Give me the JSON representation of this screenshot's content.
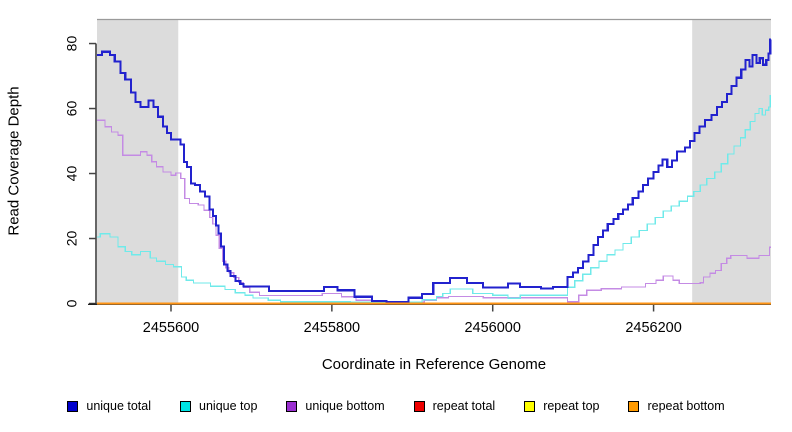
{
  "figure": {
    "background": "#FFFFFF"
  },
  "y_axis": {
    "title": "Read Coverage Depth",
    "ticks": [
      0,
      20,
      40,
      60,
      80
    ]
  },
  "x_axis": {
    "title": "Coordinate in Reference Genome",
    "ticks": [
      2455600,
      2455800,
      2456000,
      2456200
    ]
  },
  "legend": {
    "items": [
      {
        "name": "unique-total",
        "label": "unique total",
        "color": "#0000CC"
      },
      {
        "name": "unique-top",
        "label": "unique top",
        "color": "#00E5E5"
      },
      {
        "name": "unique-bottom",
        "label": "unique bottom",
        "color": "#9A2FD0"
      },
      {
        "name": "repeat-total",
        "label": "repeat total",
        "color": "#EE0000"
      },
      {
        "name": "repeat-top",
        "label": "repeat top",
        "color": "#FFFF00"
      },
      {
        "name": "repeat-bottom",
        "label": "repeat bottom",
        "color": "#FF9A00"
      }
    ]
  },
  "chart_data": {
    "type": "line",
    "step": true,
    "title": "",
    "xlabel": "Coordinate in Reference Genome",
    "ylabel": "Read Coverage Depth",
    "xlim": [
      2455508,
      2456346
    ],
    "ylim": [
      0,
      87.4
    ],
    "grid": false,
    "axis_color": "#000000",
    "tick_color": "#444444",
    "top_border_color": "#9A9A9A",
    "shade_color": "#DCDCDC",
    "shaded_regions": [
      [
        2455508,
        2455609
      ],
      [
        2456248,
        2456346
      ]
    ],
    "series": [
      {
        "name": "unique-bottom",
        "label": "unique bottom",
        "color": "#C48BE4",
        "width": 1.3,
        "points": [
          [
            2455508,
            56.4
          ],
          [
            2455518,
            54.4
          ],
          [
            2455526,
            52.8
          ],
          [
            2455534,
            51.8
          ],
          [
            2455540,
            45.6
          ],
          [
            2455562,
            46.7
          ],
          [
            2455570,
            45.6
          ],
          [
            2455576,
            43.6
          ],
          [
            2455582,
            42.1
          ],
          [
            2455590,
            40.5
          ],
          [
            2455600,
            39.5
          ],
          [
            2455606,
            40.2
          ],
          [
            2455612,
            38.5
          ],
          [
            2455617,
            32.3
          ],
          [
            2455623,
            30.8
          ],
          [
            2455634,
            30.3
          ],
          [
            2455641,
            28.7
          ],
          [
            2455648,
            26.5
          ],
          [
            2455652,
            24.5
          ],
          [
            2455656,
            21
          ],
          [
            2455660,
            17
          ],
          [
            2455664,
            13
          ],
          [
            2455668,
            11
          ],
          [
            2455672,
            9.5
          ],
          [
            2455678,
            8
          ],
          [
            2455684,
            6.5
          ],
          [
            2455690,
            5
          ],
          [
            2455698,
            3.5
          ],
          [
            2455710,
            2.5
          ],
          [
            2455788,
            3.1
          ],
          [
            2455812,
            2.1
          ],
          [
            2455830,
            1.0
          ],
          [
            2455850,
            0.4
          ],
          [
            2455915,
            1.0
          ],
          [
            2455930,
            1.8
          ],
          [
            2455945,
            2.2
          ],
          [
            2455988,
            1.8
          ],
          [
            2456093,
            0.6
          ],
          [
            2456107,
            2.6
          ],
          [
            2456117,
            4.1
          ],
          [
            2456135,
            4.6
          ],
          [
            2456160,
            5.1
          ],
          [
            2456190,
            6.2
          ],
          [
            2456203,
            7.2
          ],
          [
            2456212,
            8.5
          ],
          [
            2456224,
            7.2
          ],
          [
            2456232,
            6.2
          ],
          [
            2456258,
            6.4
          ],
          [
            2456262,
            8.2
          ],
          [
            2456270,
            9.3
          ],
          [
            2456277,
            10.2
          ],
          [
            2456284,
            12.3
          ],
          [
            2456291,
            13.9
          ],
          [
            2456296,
            14.8
          ],
          [
            2456316,
            13.9
          ],
          [
            2456331,
            14.8
          ],
          [
            2456344,
            17.3
          ]
        ]
      },
      {
        "name": "unique-top",
        "label": "unique top",
        "color": "#6FEAEA",
        "width": 1.3,
        "points": [
          [
            2455508,
            20.5
          ],
          [
            2455512,
            21.5
          ],
          [
            2455524,
            20.5
          ],
          [
            2455534,
            17.5
          ],
          [
            2455543,
            16
          ],
          [
            2455551,
            15
          ],
          [
            2455562,
            16
          ],
          [
            2455574,
            14
          ],
          [
            2455582,
            13
          ],
          [
            2455593,
            12
          ],
          [
            2455603,
            11.3
          ],
          [
            2455613,
            8.2
          ],
          [
            2455619,
            7.2
          ],
          [
            2455628,
            6.3
          ],
          [
            2455649,
            5.3
          ],
          [
            2455667,
            4.3
          ],
          [
            2455680,
            3.3
          ],
          [
            2455692,
            2.6
          ],
          [
            2455702,
            1.7
          ],
          [
            2455721,
            1.0
          ],
          [
            2455736,
            0.6
          ],
          [
            2455823,
            0.4
          ],
          [
            2455912,
            1.2
          ],
          [
            2455930,
            2.2
          ],
          [
            2455938,
            3.1
          ],
          [
            2455947,
            4.5
          ],
          [
            2455975,
            3.1
          ],
          [
            2456000,
            2.6
          ],
          [
            2456019,
            1.6
          ],
          [
            2456034,
            2.6
          ],
          [
            2456093,
            5
          ],
          [
            2456102,
            7
          ],
          [
            2456112,
            9
          ],
          [
            2456122,
            11
          ],
          [
            2456132,
            13
          ],
          [
            2456142,
            15
          ],
          [
            2456152,
            16.5
          ],
          [
            2456162,
            18.5
          ],
          [
            2456172,
            20.5
          ],
          [
            2456182,
            22.5
          ],
          [
            2456192,
            24.5
          ],
          [
            2456202,
            26.5
          ],
          [
            2456212,
            28.5
          ],
          [
            2456222,
            30
          ],
          [
            2456232,
            31.5
          ],
          [
            2456242,
            33
          ],
          [
            2456250,
            34.5
          ],
          [
            2456258,
            36.5
          ],
          [
            2456266,
            38.5
          ],
          [
            2456276,
            40.5
          ],
          [
            2456284,
            43
          ],
          [
            2456292,
            46
          ],
          [
            2456300,
            48.5
          ],
          [
            2456308,
            51
          ],
          [
            2456314,
            53.5
          ],
          [
            2456320,
            56
          ],
          [
            2456326,
            58.5
          ],
          [
            2456331,
            60
          ],
          [
            2456335,
            58
          ],
          [
            2456339,
            59.5
          ],
          [
            2456343,
            60.5
          ],
          [
            2456345,
            64
          ]
        ]
      },
      {
        "name": "unique-total",
        "label": "unique total",
        "color": "#2222CE",
        "width": 2.1,
        "points": [
          [
            2455508,
            76.5
          ],
          [
            2455514,
            77.5
          ],
          [
            2455524,
            76.5
          ],
          [
            2455530,
            74.5
          ],
          [
            2455537,
            71
          ],
          [
            2455543,
            69
          ],
          [
            2455550,
            65
          ],
          [
            2455556,
            62
          ],
          [
            2455562,
            60.5
          ],
          [
            2455572,
            62.5
          ],
          [
            2455578,
            60.5
          ],
          [
            2455584,
            57.5
          ],
          [
            2455590,
            54.5
          ],
          [
            2455595,
            52.5
          ],
          [
            2455600,
            50.5
          ],
          [
            2455612,
            49
          ],
          [
            2455616,
            43.5
          ],
          [
            2455620,
            42
          ],
          [
            2455625,
            37
          ],
          [
            2455630,
            36.5
          ],
          [
            2455636,
            34.5
          ],
          [
            2455642,
            33
          ],
          [
            2455648,
            29
          ],
          [
            2455652,
            27
          ],
          [
            2455656,
            24
          ],
          [
            2455659,
            21.5
          ],
          [
            2455662,
            17.5
          ],
          [
            2455666,
            12
          ],
          [
            2455670,
            10
          ],
          [
            2455674,
            8.5
          ],
          [
            2455680,
            7
          ],
          [
            2455686,
            6
          ],
          [
            2455690,
            5.3
          ],
          [
            2455722,
            3.9
          ],
          [
            2455790,
            5.1
          ],
          [
            2455807,
            4.1
          ],
          [
            2455828,
            2.1
          ],
          [
            2455850,
            0.8
          ],
          [
            2455868,
            0.4
          ],
          [
            2455895,
            1.8
          ],
          [
            2455912,
            2.9
          ],
          [
            2455926,
            6.3
          ],
          [
            2455947,
            7.9
          ],
          [
            2455968,
            6.3
          ],
          [
            2455988,
            4.9
          ],
          [
            2456019,
            6.2
          ],
          [
            2456034,
            5.1
          ],
          [
            2456060,
            4.6
          ],
          [
            2456075,
            5.1
          ],
          [
            2456093,
            8.2
          ],
          [
            2456100,
            9.5
          ],
          [
            2456106,
            11
          ],
          [
            2456112,
            13
          ],
          [
            2456119,
            15
          ],
          [
            2456125,
            18
          ],
          [
            2456131,
            20.5
          ],
          [
            2456137,
            22.5
          ],
          [
            2456143,
            24.5
          ],
          [
            2456150,
            26
          ],
          [
            2456156,
            27.5
          ],
          [
            2456162,
            29
          ],
          [
            2456168,
            30.5
          ],
          [
            2456174,
            32.5
          ],
          [
            2456181,
            34.5
          ],
          [
            2456187,
            36.5
          ],
          [
            2456193,
            38.5
          ],
          [
            2456200,
            40.5
          ],
          [
            2456206,
            42.5
          ],
          [
            2456211,
            44.3
          ],
          [
            2456217,
            42
          ],
          [
            2456223,
            44
          ],
          [
            2456229,
            46.8
          ],
          [
            2456239,
            48
          ],
          [
            2456245,
            50
          ],
          [
            2456251,
            52.5
          ],
          [
            2456257,
            54.5
          ],
          [
            2456264,
            56.5
          ],
          [
            2456272,
            58
          ],
          [
            2456279,
            60.5
          ],
          [
            2456285,
            62
          ],
          [
            2456291,
            64.5
          ],
          [
            2456297,
            67
          ],
          [
            2456303,
            69.5
          ],
          [
            2456309,
            72
          ],
          [
            2456314,
            75
          ],
          [
            2456319,
            73
          ],
          [
            2456323,
            76.5
          ],
          [
            2456328,
            74
          ],
          [
            2456332,
            75.5
          ],
          [
            2456336,
            73.5
          ],
          [
            2456340,
            75
          ],
          [
            2456343,
            77
          ],
          [
            2456345,
            81.3
          ]
        ]
      },
      {
        "name": "repeat-total",
        "label": "repeat total",
        "color": "#EE0000",
        "width": 1,
        "points": [
          [
            2455508,
            0
          ],
          [
            2456346,
            0
          ]
        ]
      },
      {
        "name": "repeat-top",
        "label": "repeat top",
        "color": "#FFFF00",
        "width": 1,
        "points": [
          [
            2455508,
            0
          ],
          [
            2456346,
            0
          ]
        ]
      },
      {
        "name": "repeat-bottom",
        "label": "repeat bottom",
        "color": "#FF9414",
        "width": 1.8,
        "points": [
          [
            2455508,
            0
          ],
          [
            2456346,
            0
          ]
        ]
      }
    ]
  }
}
